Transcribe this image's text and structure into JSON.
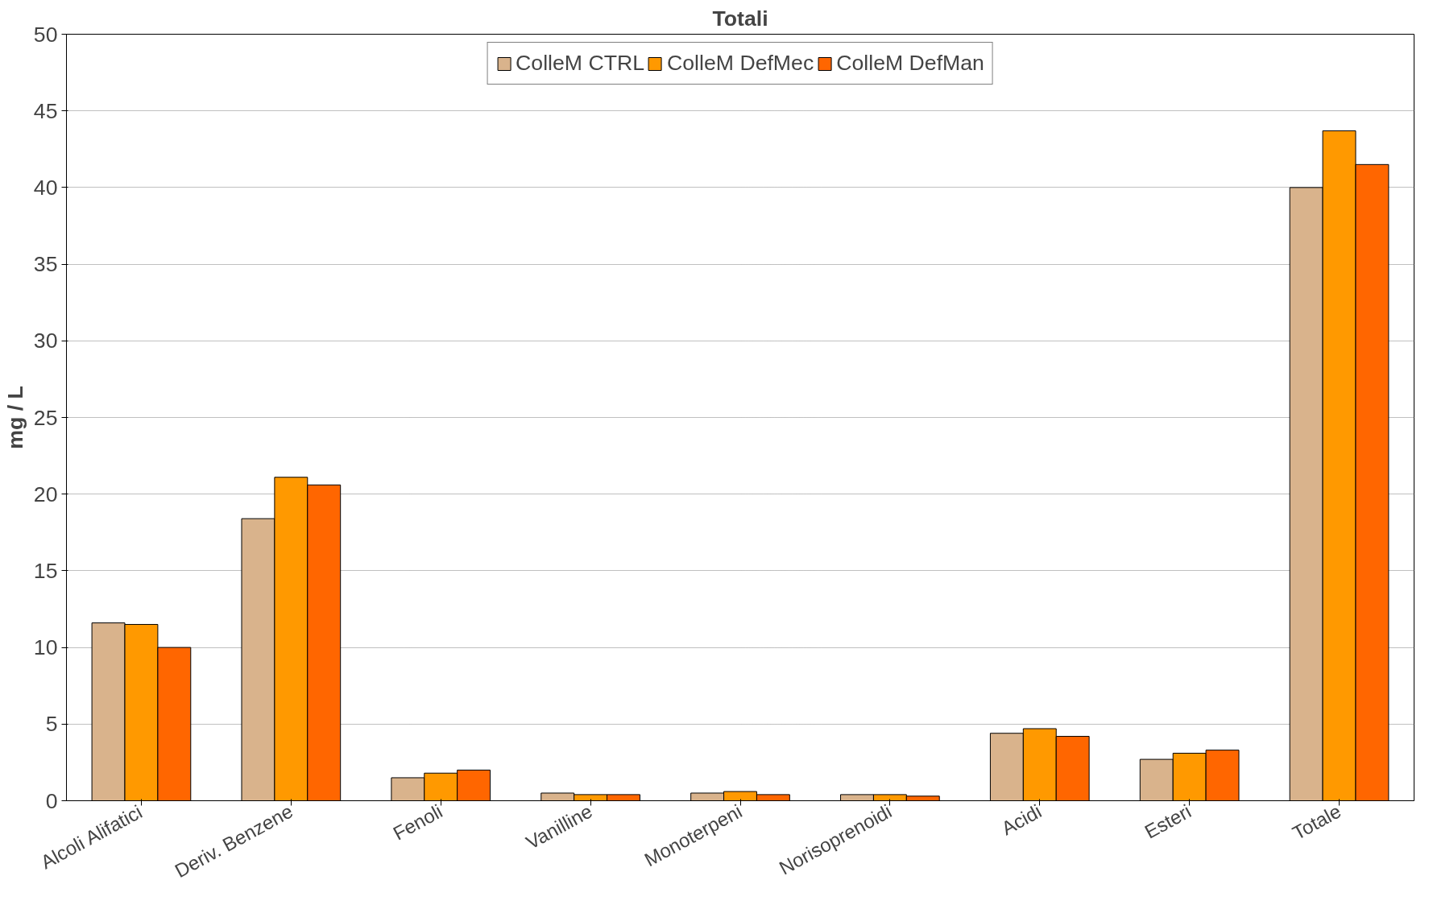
{
  "chart_data": {
    "type": "bar",
    "title": "Totali",
    "ylabel": "mg / L",
    "categories": [
      "Alcoli Alifatici",
      "Deriv. Benzene",
      "Fenoli",
      "Vanilline",
      "Monoterpeni",
      "Norisoprenoidi",
      "Acidi",
      "Esteri",
      "Totale"
    ],
    "series": [
      {
        "name": "ColleM CTRL",
        "color": "#d9b38c",
        "values": [
          11.6,
          18.4,
          1.5,
          0.5,
          0.5,
          0.4,
          4.4,
          2.7,
          40.0
        ]
      },
      {
        "name": "ColleM DefMec",
        "color": "#ff9900",
        "values": [
          11.5,
          21.1,
          1.8,
          0.4,
          0.6,
          0.4,
          4.7,
          3.1,
          43.7
        ]
      },
      {
        "name": "ColleM DefMan",
        "color": "#ff6600",
        "values": [
          10.0,
          20.6,
          2.0,
          0.4,
          0.4,
          0.3,
          4.2,
          3.3,
          41.5
        ]
      }
    ],
    "ylim": [
      0,
      50
    ],
    "yticks": [
      0,
      5,
      10,
      15,
      20,
      25,
      30,
      35,
      40,
      45,
      50
    ],
    "grid": "y",
    "legend": "top"
  }
}
